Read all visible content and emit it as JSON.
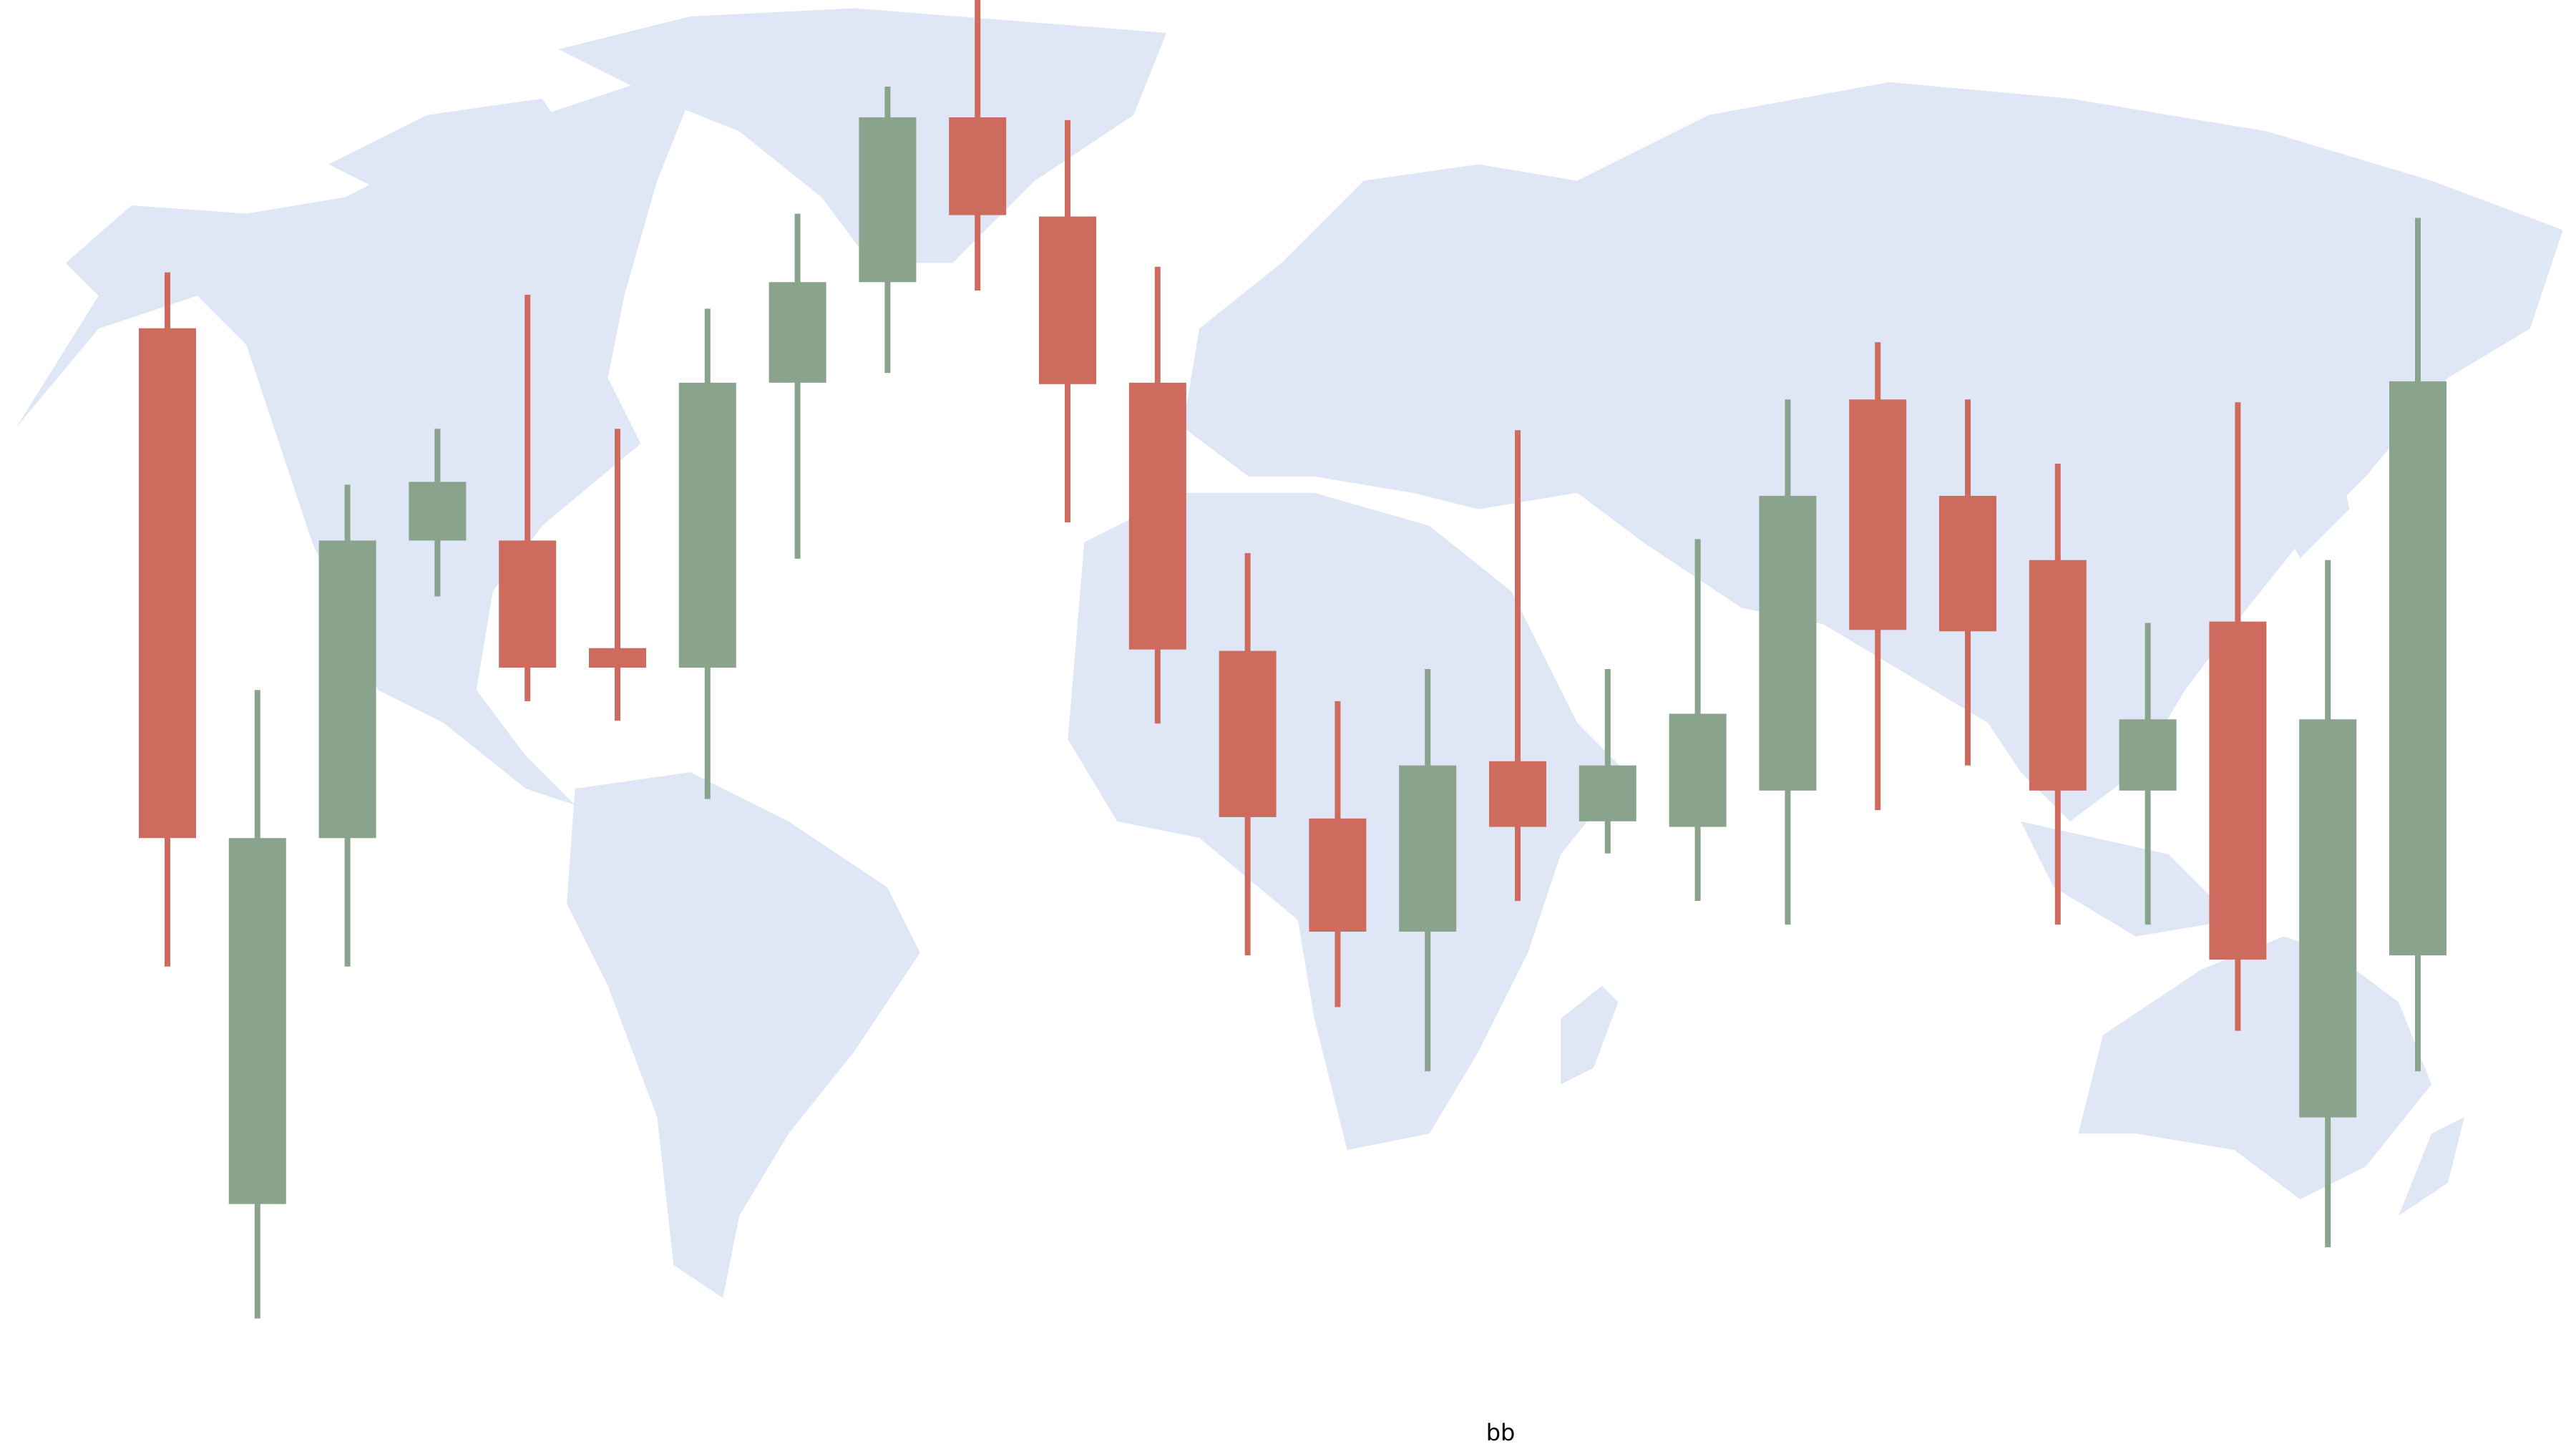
{
  "chart_data": {
    "type": "candlestick",
    "x_label": "bb",
    "open": [
      76.5,
      13.8,
      40.0,
      61.3,
      61.3,
      53.6,
      52.2,
      72.6,
      79.8,
      91.6,
      84.5,
      72.6,
      53.4,
      41.4,
      33.3,
      45.5,
      41.2,
      40.8,
      43.4,
      71.4,
      64.5,
      59.9,
      43.4,
      55.5,
      20.0,
      31.6
    ],
    "high": [
      80.5,
      50.6,
      65.3,
      69.3,
      78.9,
      69.3,
      77.9,
      84.7,
      93.8,
      100,
      91.4,
      80.9,
      60.4,
      49.8,
      52.1,
      69.2,
      52.1,
      61.4,
      71.4,
      75.5,
      71.4,
      66.8,
      55.4,
      71.2,
      59.9,
      84.4
    ],
    "low": [
      30.8,
      5.6,
      30.8,
      57.3,
      49.8,
      48.4,
      42.8,
      60.0,
      73.3,
      79.2,
      62.6,
      48.2,
      31.6,
      27.9,
      23.3,
      35.5,
      38.9,
      35.5,
      33.8,
      42.0,
      45.2,
      33.8,
      33.8,
      26.2,
      10.7,
      23.3
    ],
    "close": [
      40.0,
      40.0,
      61.3,
      65.5,
      52.2,
      52.2,
      72.6,
      79.8,
      91.6,
      84.6,
      72.5,
      53.5,
      41.5,
      33.3,
      45.2,
      40.8,
      45.2,
      48.9,
      64.5,
      54.9,
      54.8,
      43.4,
      48.5,
      31.3,
      48.5,
      72.7
    ],
    "up_color": "#8aa38d",
    "down_color": "#cd6b5f",
    "ylim": [
      0,
      100
    ]
  }
}
